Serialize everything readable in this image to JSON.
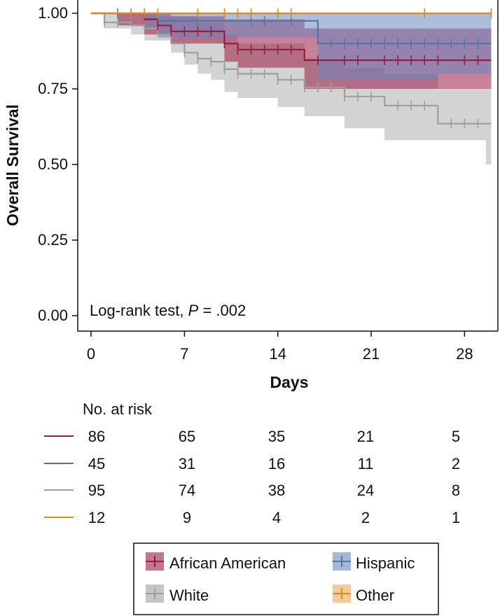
{
  "chart_data": {
    "type": "line",
    "subtype": "kaplan-meier",
    "xlabel": "Days",
    "ylabel": "Overall Survival",
    "xlim": [
      -1,
      30.5
    ],
    "ylim": [
      0,
      1
    ],
    "xticks": [
      0,
      7,
      14,
      21,
      28
    ],
    "yticks": [
      0.0,
      0.25,
      0.5,
      0.75,
      1.0
    ],
    "ytick_labels": [
      "0.00",
      "0.25",
      "0.50",
      "0.75",
      "1.00"
    ],
    "annotation": {
      "prefix": "Log-rank test, ",
      "p_label": "P",
      "suffix": " = .002"
    },
    "series": [
      {
        "name": "African American",
        "color": "#9B1B42",
        "band_color": "#9B1B42",
        "steps": [
          [
            0,
            1.0
          ],
          [
            2,
            1.0
          ],
          [
            4,
            0.98
          ],
          [
            5,
            0.96
          ],
          [
            6,
            0.94
          ],
          [
            10,
            0.9
          ],
          [
            11,
            0.88
          ],
          [
            16,
            0.845
          ],
          [
            30,
            0.845
          ]
        ],
        "upper": [
          [
            0,
            1.0
          ],
          [
            4,
            1.0
          ],
          [
            6,
            0.99
          ],
          [
            10,
            0.98
          ],
          [
            16,
            0.95
          ],
          [
            30,
            0.95
          ]
        ],
        "lower": [
          [
            0,
            1.0
          ],
          [
            2,
            0.96
          ],
          [
            4,
            0.93
          ],
          [
            6,
            0.9
          ],
          [
            10,
            0.84
          ],
          [
            11,
            0.82
          ],
          [
            16,
            0.75
          ],
          [
            30,
            0.75
          ]
        ],
        "censor": [
          5,
          6,
          7,
          8,
          9,
          10,
          11,
          12,
          13,
          14,
          15,
          17,
          19,
          20,
          22,
          23,
          24,
          25,
          26,
          28,
          29
        ]
      },
      {
        "name": "Hispanic",
        "color": "#5275A9",
        "band_color": "#6A86BF",
        "steps": [
          [
            0,
            1.0
          ],
          [
            4,
            1.0
          ],
          [
            5,
            0.975
          ],
          [
            17,
            0.975
          ],
          [
            17,
            0.9
          ],
          [
            30,
            0.9
          ]
        ],
        "upper": [
          [
            0,
            1.0
          ],
          [
            30,
            1.0
          ]
        ],
        "lower": [
          [
            0,
            1.0
          ],
          [
            4,
            0.95
          ],
          [
            5,
            0.92
          ],
          [
            17,
            0.92
          ],
          [
            17,
            0.78
          ],
          [
            26,
            0.8
          ],
          [
            30,
            0.8
          ]
        ],
        "censor": [
          2,
          3,
          8,
          12,
          13,
          15,
          18,
          19,
          20,
          21,
          22,
          23,
          24,
          25,
          26,
          27,
          28,
          29
        ]
      },
      {
        "name": "White",
        "color": "#9E9E9E",
        "band_color": "#9E9E9E",
        "steps": [
          [
            0,
            1.0
          ],
          [
            1,
            0.97
          ],
          [
            3,
            0.96
          ],
          [
            4,
            0.95
          ],
          [
            5,
            0.93
          ],
          [
            6,
            0.9
          ],
          [
            7,
            0.87
          ],
          [
            8,
            0.85
          ],
          [
            9,
            0.84
          ],
          [
            10,
            0.815
          ],
          [
            11,
            0.8
          ],
          [
            14,
            0.78
          ],
          [
            16,
            0.755
          ],
          [
            19,
            0.725
          ],
          [
            22,
            0.695
          ],
          [
            26,
            0.635
          ],
          [
            30,
            0.635
          ]
        ],
        "upper": [
          [
            0,
            1.0
          ],
          [
            2,
            1.0
          ],
          [
            5,
            0.99
          ],
          [
            8,
            0.97
          ],
          [
            10,
            0.93
          ],
          [
            11,
            0.9
          ],
          [
            16,
            0.85
          ],
          [
            19,
            0.82
          ],
          [
            22,
            0.8
          ],
          [
            26,
            0.75
          ],
          [
            30,
            0.75
          ]
        ],
        "lower": [
          [
            0,
            1.0
          ],
          [
            1,
            0.95
          ],
          [
            3,
            0.93
          ],
          [
            4,
            0.91
          ],
          [
            6,
            0.87
          ],
          [
            7,
            0.83
          ],
          [
            8,
            0.8
          ],
          [
            9,
            0.78
          ],
          [
            10,
            0.74
          ],
          [
            11,
            0.72
          ],
          [
            14,
            0.69
          ],
          [
            16,
            0.66
          ],
          [
            19,
            0.62
          ],
          [
            22,
            0.58
          ],
          [
            26,
            0.58
          ],
          [
            29.6,
            0.58
          ],
          [
            29.6,
            0.5
          ],
          [
            30,
            0.5
          ]
        ],
        "censor": [
          1,
          2,
          7,
          8,
          9,
          10,
          11,
          12,
          13,
          14,
          15,
          16,
          17,
          18,
          19,
          20,
          21,
          23,
          24,
          25,
          27,
          28,
          29
        ]
      },
      {
        "name": "Other",
        "color": "#E08A1E",
        "band_color": "#E8A858",
        "steps": [
          [
            0,
            1.0
          ],
          [
            30,
            1.0
          ]
        ],
        "upper": [
          [
            0,
            1.0
          ],
          [
            30,
            1.0
          ]
        ],
        "lower": [
          [
            0,
            1.0
          ],
          [
            30,
            1.0
          ]
        ],
        "censor": [
          3,
          4,
          5,
          8,
          10,
          11,
          12,
          14,
          15,
          25,
          30
        ]
      }
    ],
    "risk_table": {
      "title": "No. at risk",
      "columns": [
        0,
        7,
        14,
        21,
        28
      ],
      "rows": [
        {
          "series": "African American",
          "values": [
            "86",
            "65",
            "35",
            "21",
            "5"
          ]
        },
        {
          "series": "Hispanic",
          "values": [
            "45",
            "31",
            "16",
            "11",
            "2"
          ]
        },
        {
          "series": "White",
          "values": [
            "95",
            "74",
            "38",
            "24",
            "8"
          ]
        },
        {
          "series": "Other",
          "values": [
            "12",
            "9",
            "4",
            "2",
            "1"
          ]
        }
      ]
    },
    "legend": {
      "placement": "bottom",
      "entries": [
        "African American",
        "Hispanic",
        "White",
        "Other"
      ]
    }
  }
}
